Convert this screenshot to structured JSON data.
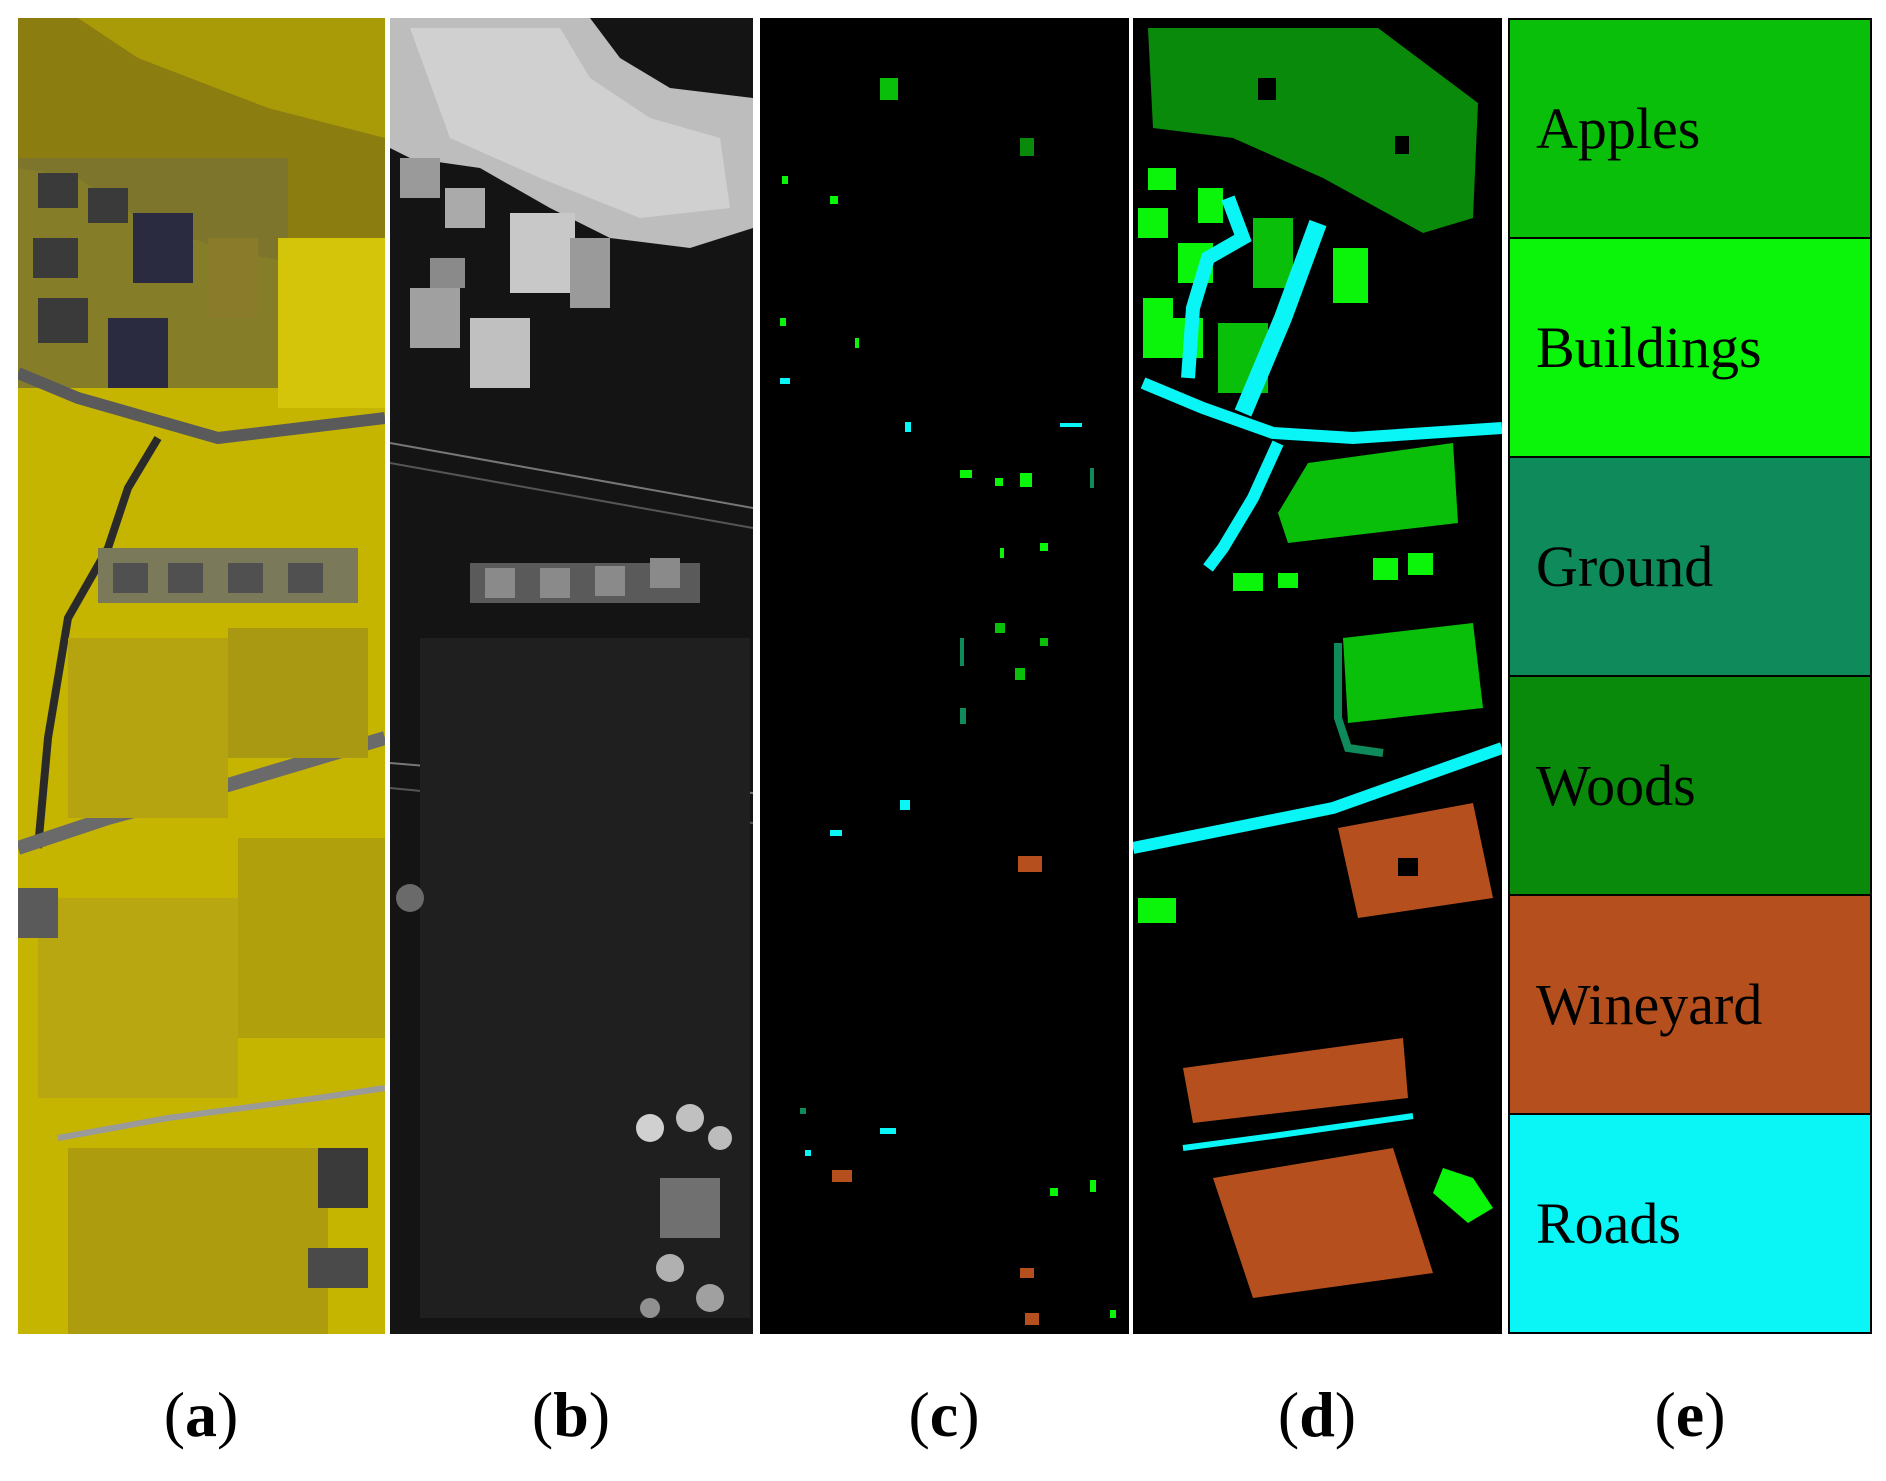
{
  "panels": {
    "a": {
      "letter": "a",
      "description": ""
    },
    "b": {
      "letter": "b"
    },
    "c": {
      "letter": "c"
    },
    "d": {
      "letter": "d"
    },
    "e": {
      "letter": "e"
    }
  },
  "legend": [
    {
      "label": "Apples",
      "color": "#0abf0a"
    },
    {
      "label": "Buildings",
      "color": "#0af50a"
    },
    {
      "label": "Ground",
      "color": "#0f8a5a"
    },
    {
      "label": "Woods",
      "color": "#0a8a0a"
    },
    {
      "label": "Wineyard",
      "color": "#b5501e"
    },
    {
      "label": "Roads",
      "color": "#0af5f5"
    }
  ],
  "colors": {
    "rgb_field": "#c8b800",
    "rgb_dark": "#4a4a2a",
    "lidar_bg": "#111111",
    "map_bg": "#000000"
  }
}
